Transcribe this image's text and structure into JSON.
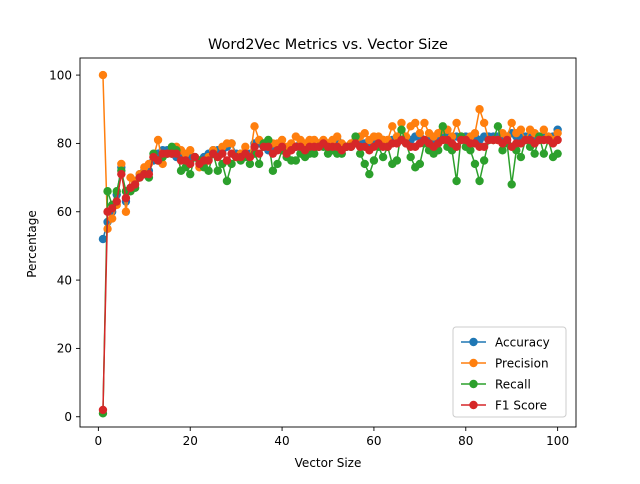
{
  "chart_data": {
    "type": "line",
    "title": "Word2Vec Metrics vs. Vector Size",
    "xlabel": "Vector Size",
    "ylabel": "Percentage",
    "xlim": [
      -4,
      104
    ],
    "ylim": [
      -3,
      105
    ],
    "x_ticks": [
      0,
      20,
      40,
      60,
      80,
      100
    ],
    "y_ticks": [
      0,
      20,
      40,
      60,
      80,
      100
    ],
    "grid": false,
    "legend_position": "lower-right",
    "x": [
      1,
      2,
      3,
      4,
      5,
      6,
      7,
      8,
      9,
      10,
      11,
      12,
      13,
      14,
      15,
      16,
      17,
      18,
      19,
      20,
      21,
      22,
      23,
      24,
      25,
      26,
      27,
      28,
      29,
      30,
      31,
      32,
      33,
      34,
      35,
      36,
      37,
      38,
      39,
      40,
      41,
      42,
      43,
      44,
      45,
      46,
      47,
      48,
      49,
      50,
      51,
      52,
      53,
      54,
      55,
      56,
      57,
      58,
      59,
      60,
      61,
      62,
      63,
      64,
      65,
      66,
      67,
      68,
      69,
      70,
      71,
      72,
      73,
      74,
      75,
      76,
      77,
      78,
      79,
      80,
      81,
      82,
      83,
      84,
      85,
      86,
      87,
      88,
      89,
      90,
      91,
      92,
      93,
      94,
      95,
      96,
      97,
      98,
      99,
      100
    ],
    "series": [
      {
        "name": "Accuracy",
        "color": "#1f77b4",
        "values": [
          52,
          57,
          60,
          65,
          73,
          63,
          67,
          69,
          71,
          72,
          72,
          75,
          77,
          78,
          78,
          77,
          76,
          77,
          76,
          76,
          76,
          75,
          76,
          77,
          78,
          78,
          78,
          79,
          80,
          77,
          77,
          77,
          77,
          80,
          80,
          79,
          78,
          78,
          79,
          79,
          78,
          79,
          79,
          80,
          79,
          80,
          80,
          80,
          80,
          80,
          80,
          81,
          79,
          79,
          79,
          80,
          80,
          80,
          80,
          81,
          81,
          81,
          80,
          81,
          81,
          81,
          81,
          81,
          82,
          82,
          81,
          81,
          81,
          82,
          82,
          82,
          82,
          82,
          82,
          82,
          82,
          82,
          81,
          82,
          82,
          82,
          82,
          82,
          82,
          83,
          82,
          82,
          82,
          82,
          82,
          82,
          82,
          82,
          82,
          84
        ]
      },
      {
        "name": "Precision",
        "color": "#ff7f0e",
        "values": [
          100,
          55,
          58,
          62,
          74,
          60,
          70,
          69,
          71,
          73,
          74,
          76,
          81,
          74,
          77,
          77,
          79,
          78,
          77,
          78,
          76,
          73,
          74,
          76,
          78,
          76,
          79,
          80,
          80,
          76,
          77,
          79,
          76,
          85,
          81,
          80,
          79,
          80,
          80,
          81,
          79,
          80,
          82,
          81,
          80,
          81,
          81,
          80,
          81,
          80,
          81,
          82,
          80,
          79,
          80,
          81,
          82,
          83,
          81,
          82,
          82,
          81,
          81,
          85,
          82,
          86,
          82,
          85,
          86,
          83,
          86,
          83,
          82,
          83,
          84,
          84,
          82,
          86,
          82,
          81,
          82,
          83,
          90,
          86,
          81,
          81,
          81,
          83,
          82,
          86,
          83,
          84,
          81,
          84,
          83,
          82,
          84,
          82,
          81,
          83
        ]
      },
      {
        "name": "Recall",
        "color": "#2ca02c",
        "values": [
          1,
          66,
          62,
          66,
          72,
          66,
          66,
          67,
          70,
          71,
          70,
          77,
          75,
          76,
          77,
          79,
          78,
          72,
          73,
          71,
          76,
          75,
          73,
          72,
          77,
          72,
          74,
          69,
          74,
          76,
          75,
          76,
          74,
          77,
          74,
          80,
          81,
          72,
          74,
          78,
          76,
          75,
          75,
          77,
          76,
          77,
          77,
          79,
          79,
          77,
          78,
          77,
          77,
          79,
          79,
          82,
          77,
          74,
          71,
          75,
          79,
          76,
          79,
          74,
          75,
          84,
          80,
          76,
          73,
          74,
          80,
          78,
          77,
          78,
          85,
          79,
          78,
          69,
          82,
          79,
          78,
          74,
          69,
          75,
          81,
          81,
          85,
          78,
          80,
          68,
          78,
          76,
          81,
          79,
          77,
          82,
          77,
          81,
          76,
          77
        ]
      },
      {
        "name": "F1 Score",
        "color": "#d62728",
        "values": [
          2,
          60,
          61,
          63,
          71,
          64,
          67,
          68,
          70,
          71,
          71,
          76,
          75,
          77,
          77,
          77,
          77,
          75,
          75,
          74,
          76,
          74,
          75,
          75,
          77,
          76,
          77,
          75,
          77,
          76,
          76,
          77,
          76,
          79,
          77,
          79,
          79,
          77,
          78,
          79,
          77,
          78,
          79,
          79,
          78,
          79,
          79,
          79,
          80,
          79,
          79,
          79,
          78,
          79,
          79,
          80,
          79,
          79,
          78,
          79,
          80,
          79,
          79,
          80,
          80,
          81,
          80,
          79,
          79,
          80,
          81,
          80,
          79,
          80,
          81,
          81,
          80,
          79,
          81,
          81,
          80,
          80,
          79,
          79,
          81,
          81,
          81,
          80,
          81,
          79,
          80,
          80,
          81,
          81,
          80,
          81,
          81,
          81,
          80,
          81
        ]
      }
    ]
  }
}
